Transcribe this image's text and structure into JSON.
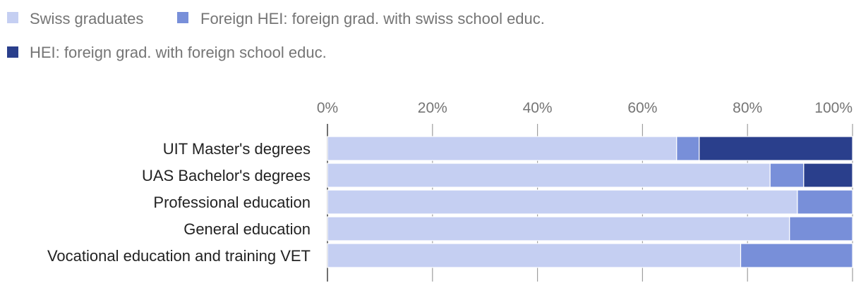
{
  "chart_data": {
    "type": "bar",
    "orientation": "horizontal",
    "stacked": "percent",
    "categories": [
      "UIT Master's degrees",
      "UAS Bachelor's degrees",
      "Professional education",
      "General education",
      "Vocational education and training VET"
    ],
    "series": [
      {
        "name": "Swiss graduates",
        "color": "#c5cff2",
        "values": [
          66.5,
          84.3,
          89.5,
          88.0,
          78.7
        ]
      },
      {
        "name": "Foreign HEI: foreign grad. with swiss school educ.",
        "color": "#788fd9",
        "values": [
          4.3,
          6.4,
          10.5,
          12.0,
          21.3
        ]
      },
      {
        "name": "HEI: foreign grad. with foreign school educ.",
        "color": "#2a3f8c",
        "values": [
          29.2,
          9.3,
          0,
          0,
          0
        ]
      }
    ],
    "xlim": [
      0,
      100
    ],
    "x_ticks": [
      "0%",
      "20%",
      "40%",
      "60%",
      "80%",
      "100%"
    ],
    "grid": true,
    "legend_position": "top-left"
  }
}
